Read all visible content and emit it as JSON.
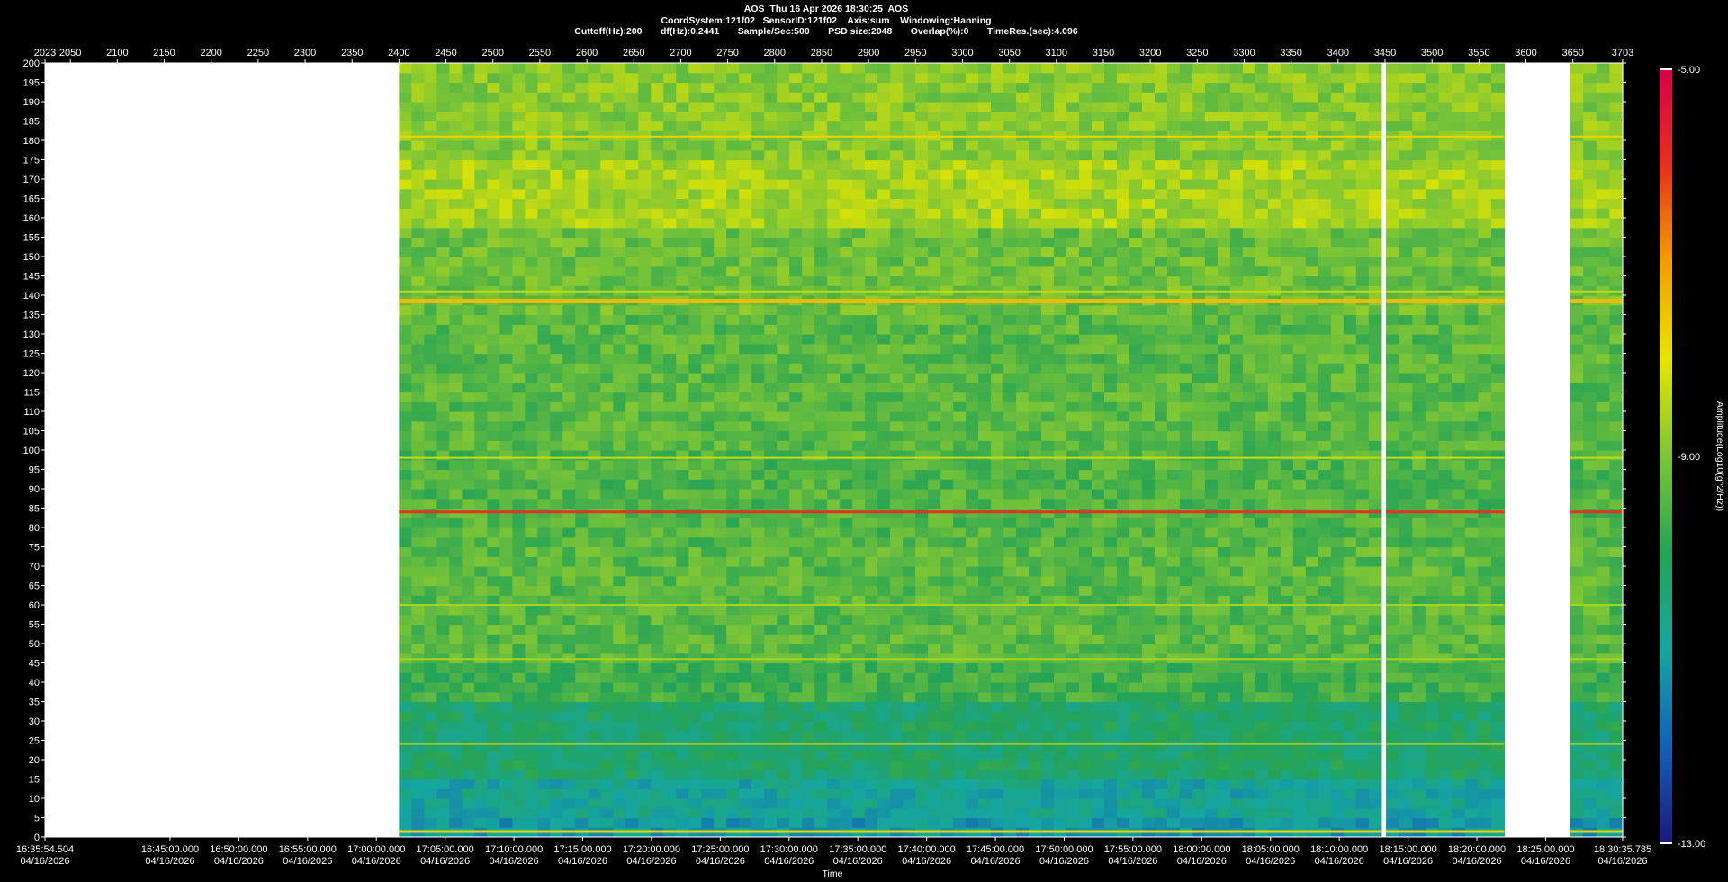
{
  "header": {
    "line1": "AOS  Thu 16 Apr 2026 18:30:25  AOS",
    "line2": "CoordSystem:121f02   SensorID:121f02    Axis:sum    Windowing:Hanning",
    "line3": "Cuttoff(Hz):200       df(Hz):0.2441       Sample/Sec:500       PSD size:2048       Overlap(%):0       TimeRes.(sec):4.096"
  },
  "chart_data": {
    "type": "heatmap",
    "title": "AOS  Thu 16 Apr 2026 18:30:25  AOS",
    "xlabel": "Time",
    "ylabel": "",
    "colorbar_label": "Amplitude(Log10(g^2/Hz))",
    "ylim": [
      0,
      200
    ],
    "y_ticks": [
      0,
      5,
      10,
      15,
      20,
      25,
      30,
      35,
      40,
      45,
      50,
      55,
      60,
      65,
      70,
      75,
      80,
      85,
      90,
      95,
      100,
      105,
      110,
      115,
      120,
      125,
      130,
      135,
      140,
      145,
      150,
      155,
      160,
      165,
      170,
      175,
      180,
      185,
      190,
      195,
      200
    ],
    "top_axis_range": [
      2023,
      3703
    ],
    "top_axis_ticks": [
      2023,
      2050,
      2100,
      2150,
      2200,
      2250,
      2300,
      2350,
      2400,
      2450,
      2500,
      2550,
      2600,
      2650,
      2700,
      2750,
      2800,
      2850,
      2900,
      2950,
      3000,
      3050,
      3100,
      3150,
      3200,
      3250,
      3300,
      3350,
      3400,
      3450,
      3500,
      3550,
      3600,
      3650,
      3703
    ],
    "time_range": [
      "16:35:54.504",
      "18:30:35.785"
    ],
    "time_ticks": [
      {
        "time": "16:35:54.504",
        "date": "04/16/2026"
      },
      {
        "time": "16:45:00.000",
        "date": "04/16/2026"
      },
      {
        "time": "16:50:00.000",
        "date": "04/16/2026"
      },
      {
        "time": "16:55:00.000",
        "date": "04/16/2026"
      },
      {
        "time": "17:00:00.000",
        "date": "04/16/2026"
      },
      {
        "time": "17:05:00.000",
        "date": "04/16/2026"
      },
      {
        "time": "17:10:00.000",
        "date": "04/16/2026"
      },
      {
        "time": "17:15:00.000",
        "date": "04/16/2026"
      },
      {
        "time": "17:20:00.000",
        "date": "04/16/2026"
      },
      {
        "time": "17:25:00.000",
        "date": "04/16/2026"
      },
      {
        "time": "17:30:00.000",
        "date": "04/16/2026"
      },
      {
        "time": "17:35:00.000",
        "date": "04/16/2026"
      },
      {
        "time": "17:40:00.000",
        "date": "04/16/2026"
      },
      {
        "time": "17:45:00.000",
        "date": "04/16/2026"
      },
      {
        "time": "17:50:00.000",
        "date": "04/16/2026"
      },
      {
        "time": "17:55:00.000",
        "date": "04/16/2026"
      },
      {
        "time": "18:00:00.000",
        "date": "04/16/2026"
      },
      {
        "time": "18:05:00.000",
        "date": "04/16/2026"
      },
      {
        "time": "18:10:00.000",
        "date": "04/16/2026"
      },
      {
        "time": "18:15:00.000",
        "date": "04/16/2026"
      },
      {
        "time": "18:20:00.000",
        "date": "04/16/2026"
      },
      {
        "time": "18:25:00.000",
        "date": "04/16/2026"
      },
      {
        "time": "18:30:35.785",
        "date": "04/16/2026"
      }
    ],
    "data_segments": [
      {
        "start": 2400,
        "end": 3446
      },
      {
        "start": 3451,
        "end": 3577
      },
      {
        "start": 3647,
        "end": 3703
      }
    ],
    "horizontal_lines": [
      {
        "freq": 84,
        "level": -6.0
      },
      {
        "freq": 138.5,
        "level": -7.4
      },
      {
        "freq": 181,
        "level": -7.8
      },
      {
        "freq": 98,
        "level": -8.3
      },
      {
        "freq": 141,
        "level": -8.4
      },
      {
        "freq": 60,
        "level": -8.6
      },
      {
        "freq": 46,
        "level": -8.6
      },
      {
        "freq": 24,
        "level": -8.8
      },
      {
        "freq": 1.5,
        "level": -7.8
      }
    ],
    "colorbar": {
      "min": -13.0,
      "max": -5.0,
      "tick_labels": [
        "-5.00",
        "-9.00",
        "-13.00"
      ],
      "colors": [
        "#1a1a7a",
        "#1560b4",
        "#16a6a0",
        "#25a355",
        "#7cc536",
        "#e6e600",
        "#f0a000",
        "#e8301e",
        "#d8004a"
      ]
    },
    "grid": false
  }
}
